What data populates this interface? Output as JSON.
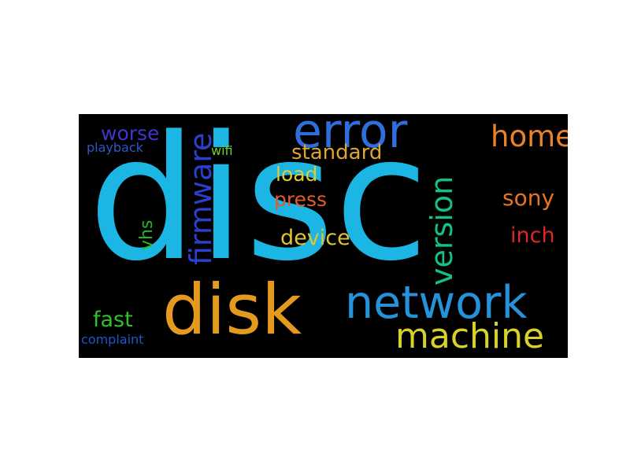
{
  "wordcloud": {
    "words": [
      {
        "text": "disc",
        "color": "#1bb6e4"
      },
      {
        "text": "disk",
        "color": "#e39a1f"
      },
      {
        "text": "error",
        "color": "#2f6fdc"
      },
      {
        "text": "network",
        "color": "#2592d9"
      },
      {
        "text": "machine",
        "color": "#d8d12a"
      },
      {
        "text": "firmware",
        "color": "#2b3fd0"
      },
      {
        "text": "version",
        "color": "#13c08a"
      },
      {
        "text": "home",
        "color": "#e98228"
      },
      {
        "text": "sony",
        "color": "#e67422"
      },
      {
        "text": "inch",
        "color": "#d92828"
      },
      {
        "text": "device",
        "color": "#e0c431"
      },
      {
        "text": "standard",
        "color": "#e0a430"
      },
      {
        "text": "load",
        "color": "#dfcd32"
      },
      {
        "text": "press",
        "color": "#e25a2a"
      },
      {
        "text": "worse",
        "color": "#3d36c9"
      },
      {
        "text": "playback",
        "color": "#2b58c8"
      },
      {
        "text": "wifi",
        "color": "#6ed12a"
      },
      {
        "text": "vhs",
        "color": "#25b42a"
      },
      {
        "text": "fast",
        "color": "#2ec12a"
      },
      {
        "text": "complaint",
        "color": "#2056c8"
      }
    ]
  }
}
